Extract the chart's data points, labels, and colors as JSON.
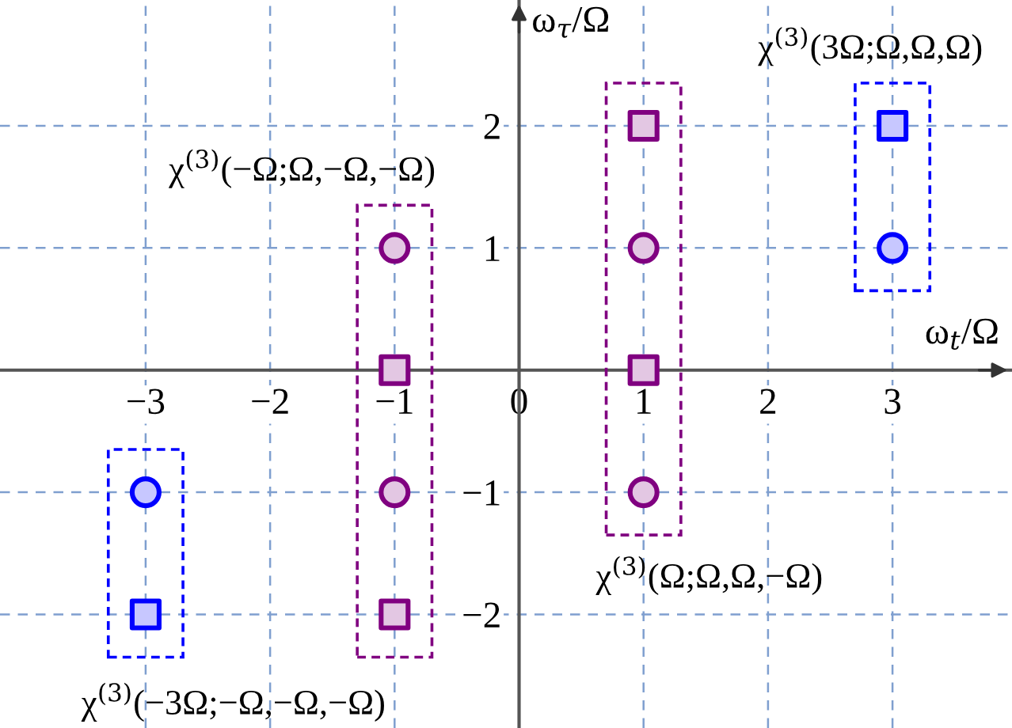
{
  "chart_data": {
    "type": "scatter",
    "xlabel": "ω$_{t}$/Ω",
    "ylabel": "ω$_{τ}$/Ω",
    "xlim": [
      -4.17,
      3.96
    ],
    "ylim": [
      -2.93,
      3.03
    ],
    "xticks": [
      -3,
      -2,
      -1,
      0,
      1,
      2,
      3
    ],
    "yticks": [
      -2,
      -1,
      1,
      2
    ],
    "grid": true,
    "series": [
      {
        "color": "#0000ff",
        "marker": "square",
        "x": [
          3
        ],
        "values": [
          2
        ]
      },
      {
        "color": "#0000ff",
        "marker": "circle",
        "x": [
          3
        ],
        "values": [
          1
        ]
      },
      {
        "color": "#800080",
        "marker": "square",
        "x": [
          1,
          1
        ],
        "values": [
          2,
          0
        ]
      },
      {
        "color": "#800080",
        "marker": "circle",
        "x": [
          1,
          1
        ],
        "values": [
          1,
          -1
        ]
      },
      {
        "color": "#800080",
        "marker": "circle",
        "x": [
          -1,
          -1
        ],
        "values": [
          1,
          -1
        ]
      },
      {
        "color": "#800080",
        "marker": "square",
        "x": [
          -1,
          -1
        ],
        "values": [
          0,
          -2
        ]
      },
      {
        "color": "#0000ff",
        "marker": "circle",
        "x": [
          -3
        ],
        "values": [
          -1
        ]
      },
      {
        "color": "#0000ff",
        "marker": "square",
        "x": [
          -3
        ],
        "values": [
          -2
        ]
      }
    ],
    "annotations": [
      {
        "text": "χ$^{(3)}$(3Ω;Ω,Ω,Ω)",
        "x": 3,
        "y": 2
      },
      {
        "text": "χ$^{(3)}$(−Ω;Ω,−Ω,−Ω)",
        "x": -1,
        "y": 1
      },
      {
        "text": "χ$^{(3)}$(Ω;Ω,Ω,−Ω)",
        "x": 1,
        "y": -1
      },
      {
        "text": "χ$^{(3)}$(−3Ω;−Ω,−Ω,−Ω)",
        "x": -3,
        "y": -2
      }
    ]
  }
}
